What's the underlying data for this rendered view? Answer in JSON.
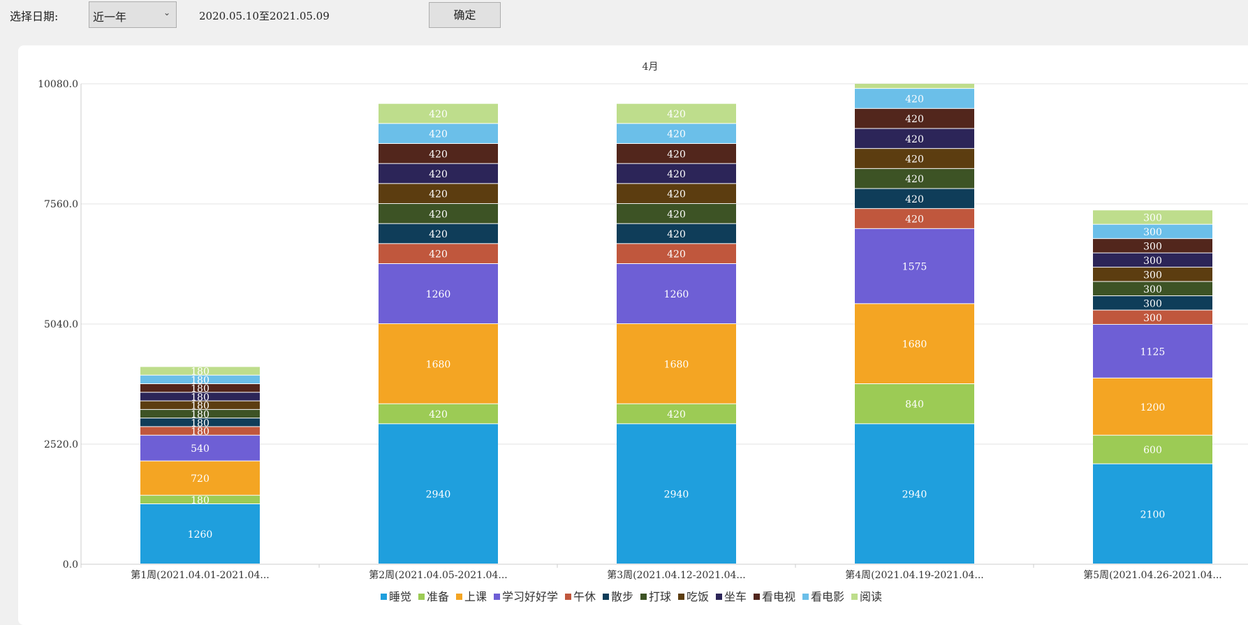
{
  "toolbar": {
    "date_label": "选择日期:",
    "range_select": "近一年",
    "date_range": "2020.05.10至2021.05.09",
    "confirm_label": "确定"
  },
  "chart_data": {
    "type": "bar",
    "stacked": true,
    "title": "4月",
    "categories": [
      "第1周(2021.04.01-2021.04...",
      "第2周(2021.04.05-2021.04...",
      "第3周(2021.04.12-2021.04...",
      "第4周(2021.04.19-2021.04...",
      "第5周(2021.04.26-2021.04..."
    ],
    "ylim": [
      0,
      10080
    ],
    "yticks": [
      "0.0",
      "2520.0",
      "5040.0",
      "7560.0",
      "10080.0"
    ],
    "grid": true,
    "legend": "bottom",
    "series": [
      {
        "name": "睡觉",
        "color": "#1f9fdd",
        "values": [
          1260,
          2940,
          2940,
          2940,
          2100
        ]
      },
      {
        "name": "准备",
        "color": "#9ccb55",
        "values": [
          180,
          420,
          420,
          840,
          600
        ]
      },
      {
        "name": "上课",
        "color": "#f4a523",
        "values": [
          720,
          1680,
          1680,
          1680,
          1200
        ]
      },
      {
        "name": "学习好好学",
        "color": "#6e5fd5",
        "values": [
          540,
          1260,
          1260,
          1575,
          1125
        ]
      },
      {
        "name": "午休",
        "color": "#c0573d",
        "values": [
          180,
          420,
          420,
          420,
          300
        ]
      },
      {
        "name": "散步",
        "color": "#0f3d59",
        "values": [
          180,
          420,
          420,
          420,
          300
        ]
      },
      {
        "name": "打球",
        "color": "#3d5325",
        "values": [
          180,
          420,
          420,
          420,
          300
        ]
      },
      {
        "name": "吃饭",
        "color": "#5c3d10",
        "values": [
          180,
          420,
          420,
          420,
          300
        ]
      },
      {
        "name": "坐车",
        "color": "#2c2558",
        "values": [
          180,
          420,
          420,
          420,
          300
        ]
      },
      {
        "name": "看电视",
        "color": "#52261c",
        "values": [
          180,
          420,
          420,
          420,
          300
        ]
      },
      {
        "name": "看电影",
        "color": "#6bbfe9",
        "values": [
          180,
          420,
          420,
          420,
          300
        ]
      },
      {
        "name": "阅读",
        "color": "#bedd8c",
        "values": [
          180,
          420,
          420,
          420,
          300
        ]
      }
    ]
  }
}
